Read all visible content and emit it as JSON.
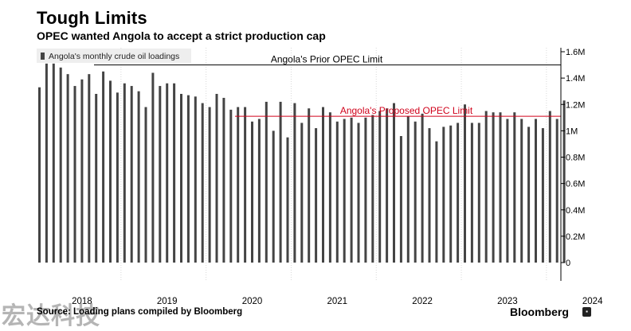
{
  "header": {
    "title": "Tough Limits",
    "subtitle": "OPEC wanted Angola to accept a strict production cap"
  },
  "footer": {
    "source": "Source: Loading plans compiled by Bloomberg",
    "logo": "Bloomberg"
  },
  "watermark": "宏达科技",
  "chart_data": {
    "type": "bar",
    "title": "Tough Limits",
    "subtitle": "OPEC wanted Angola to accept a strict production cap",
    "xlabel": "",
    "ylabel": "",
    "ylim": [
      -0.15,
      1.65
    ],
    "ytick_values": [
      0,
      0.2,
      0.4,
      0.6,
      0.8,
      1.0,
      1.2,
      1.4,
      1.6
    ],
    "ytick_labels": [
      "0",
      "0.2M",
      "0.4M",
      "0.6M",
      "0.8M",
      "1M",
      "1.2M",
      "1.4M",
      "1.6M"
    ],
    "x_year_labels": [
      {
        "label": "2018",
        "month_index": 1
      },
      {
        "label": "2019",
        "month_index": 13
      },
      {
        "label": "2020",
        "month_index": 25
      },
      {
        "label": "2021",
        "month_index": 37
      },
      {
        "label": "2022",
        "month_index": 49
      },
      {
        "label": "2023",
        "month_index": 61
      },
      {
        "label": "2024",
        "month_index": 73
      }
    ],
    "legend": {
      "label": "Angola's monthly crude oil loadings",
      "position": "top-left"
    },
    "series": [
      {
        "name": "Angola's monthly crude oil loadings",
        "color": "#444444",
        "values": [
          1.33,
          1.51,
          1.51,
          1.48,
          1.43,
          1.34,
          1.39,
          1.43,
          1.28,
          1.45,
          1.38,
          1.29,
          1.36,
          1.34,
          1.3,
          1.18,
          1.44,
          1.34,
          1.36,
          1.36,
          1.28,
          1.27,
          1.26,
          1.21,
          1.18,
          1.28,
          1.25,
          1.16,
          1.18,
          1.18,
          1.07,
          1.09,
          1.22,
          1.0,
          1.22,
          0.95,
          1.21,
          1.06,
          1.17,
          1.02,
          1.18,
          1.14,
          1.07,
          1.09,
          1.1,
          1.06,
          1.1,
          1.12,
          1.15,
          1.17,
          1.21,
          0.96,
          1.11,
          1.07,
          1.13,
          1.02,
          0.92,
          1.03,
          1.04,
          1.06,
          1.2,
          1.06,
          1.06,
          1.15,
          1.14,
          1.14,
          1.09,
          1.14,
          1.09,
          1.03,
          1.09,
          1.02,
          1.15,
          1.09,
          1.23
        ]
      }
    ],
    "reference_lines": [
      {
        "label": "Angola's Prior OPEC Limit",
        "value": 1.5,
        "color": "#000000"
      },
      {
        "label": "Angola's Proposed OPEC Limit",
        "value": 1.11,
        "color": "#d0021b"
      }
    ],
    "grid": false,
    "vertical_separators": "between-years"
  }
}
